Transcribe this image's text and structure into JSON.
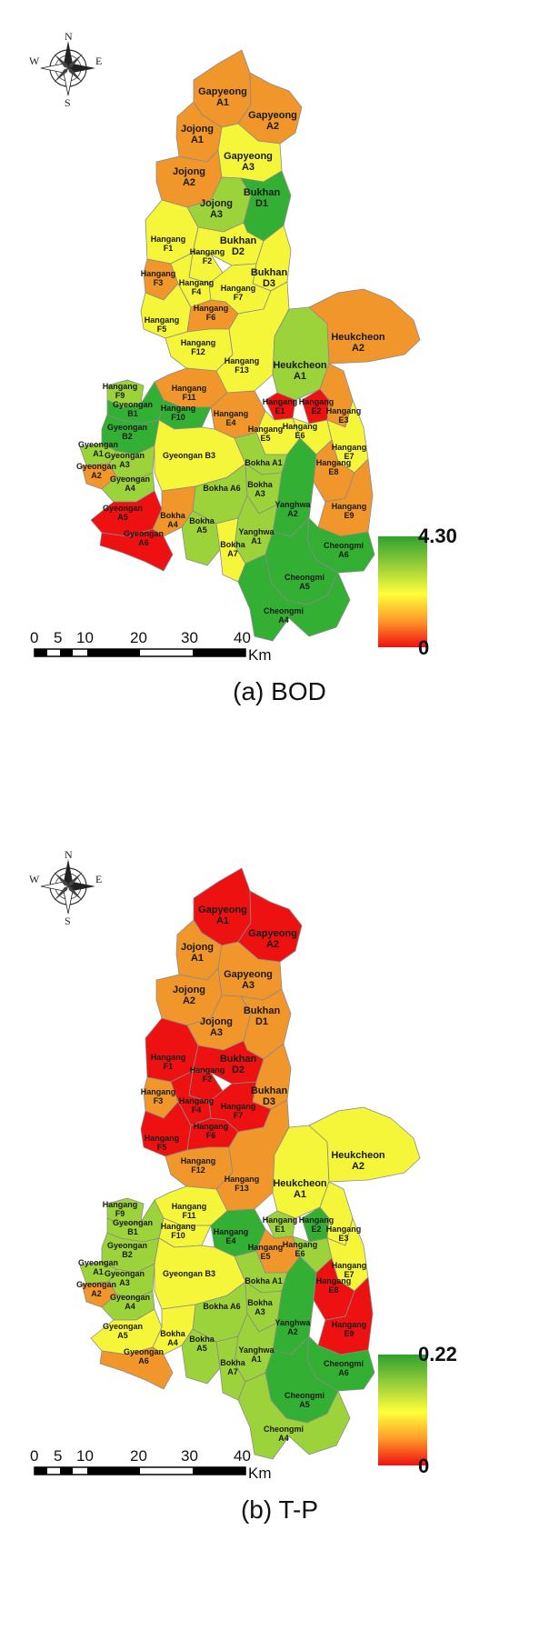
{
  "panels": [
    {
      "caption": "(a)  BOD",
      "legend": {
        "max_label": "4.30",
        "min_label": "0",
        "colors": [
          "#2fa12f",
          "#ffff3a",
          "#ee1111"
        ]
      },
      "scale_bar": {
        "ticks": [
          "0",
          "5",
          "10",
          "20",
          "30",
          "40"
        ],
        "unit": "Km"
      },
      "compass": {
        "n": "N",
        "s": "S",
        "e": "E",
        "w": "W"
      },
      "regions": {
        "gap_a1": {
          "label": [
            "Gapyeong",
            "A1"
          ],
          "color": "#f0962a"
        },
        "gap_a2": {
          "label": [
            "Gapyeong",
            "A2"
          ],
          "color": "#f0962a"
        },
        "joj_a1": {
          "label": [
            "Jojong",
            "A1"
          ],
          "color": "#f0962a"
        },
        "joj_a2": {
          "label": [
            "Jojong",
            "A2"
          ],
          "color": "#f0962a"
        },
        "gap_a3": {
          "label": [
            "Gapyeong",
            "A3"
          ],
          "color": "#f5f53a"
        },
        "joj_a3": {
          "label": [
            "Jojong",
            "A3"
          ],
          "color": "#9dd33a"
        },
        "buk_d1": {
          "label": [
            "Bukhan",
            "D1"
          ],
          "color": "#33b033"
        },
        "han_f1": {
          "label": [
            "Hangang",
            "F1"
          ],
          "color": "#f5f53a"
        },
        "buk_d2": {
          "label": [
            "Bukhan",
            "D2"
          ],
          "color": "#f5f53a"
        },
        "han_f2": {
          "label": [
            "Hangang",
            "F2"
          ],
          "color": "#f5f53a"
        },
        "han_f3": {
          "label": [
            "Hangang",
            "F3"
          ],
          "color": "#f0962a"
        },
        "han_f4": {
          "label": [
            "Hangang",
            "F4"
          ],
          "color": "#f5f53a"
        },
        "buk_d3": {
          "label": [
            "Bukhan",
            "D3"
          ],
          "color": "#f5f53a"
        },
        "han_f7": {
          "label": [
            "Hangang",
            "F7"
          ],
          "color": "#f5f53a"
        },
        "han_f5": {
          "label": [
            "Hangang",
            "F5"
          ],
          "color": "#f5f53a"
        },
        "han_f6": {
          "label": [
            "Hangang",
            "F6"
          ],
          "color": "#f0962a"
        },
        "han_f12": {
          "label": [
            "Hangang",
            "F12"
          ],
          "color": "#f5f53a"
        },
        "han_f13": {
          "label": [
            "Hangang",
            "F13"
          ],
          "color": "#f5f53a"
        },
        "heu_a1": {
          "label": [
            "Heukcheon",
            "A1"
          ],
          "color": "#9dd33a"
        },
        "heu_a2": {
          "label": [
            "Heukcheon",
            "A2"
          ],
          "color": "#f0962a"
        },
        "han_f9": {
          "label": [
            "Hangang",
            "F9"
          ],
          "color": "#9dd33a"
        },
        "han_f11": {
          "label": [
            "Hangang",
            "F11"
          ],
          "color": "#f0962a"
        },
        "han_f10": {
          "label": [
            "Hangang",
            "F10"
          ],
          "color": "#33b033"
        },
        "gyeo_b1": {
          "label": [
            "Gyeongan",
            "B1"
          ],
          "color": "#33b033"
        },
        "gyeo_b2": {
          "label": [
            "Gyeongan",
            "B2"
          ],
          "color": "#33b033"
        },
        "han_e4": {
          "label": [
            "Hangang",
            "E4"
          ],
          "color": "#f0962a"
        },
        "han_e1": {
          "label": [
            "Hangang",
            "E1"
          ],
          "color": "#ee1111"
        },
        "han_e2": {
          "label": [
            "Hangang",
            "E2"
          ],
          "color": "#ee1111"
        },
        "han_e3": {
          "label": [
            "Hangang",
            "E3"
          ],
          "color": "#f0962a"
        },
        "han_e5": {
          "label": [
            "Hangang",
            "E5"
          ],
          "color": "#f5f53a"
        },
        "han_e6": {
          "label": [
            "Hangang",
            "E6"
          ],
          "color": "#f5f53a"
        },
        "han_e7": {
          "label": [
            "Hangang",
            "E7"
          ],
          "color": "#f5f53a"
        },
        "gyeo_a1": {
          "label": [
            "Gyeongan",
            "A1"
          ],
          "color": "#9dd33a"
        },
        "gyeo_a3": {
          "label": [
            "Gyeongan",
            "A3"
          ],
          "color": "#9dd33a"
        },
        "gyeo_a2": {
          "label": [
            "Gyeongan",
            "A2"
          ],
          "color": "#f0962a"
        },
        "gyeo_a4": {
          "label": [
            "Gyeongan",
            "A4"
          ],
          "color": "#9dd33a"
        },
        "gyeo_b3": {
          "label": [
            "Gyeongan B3"
          ],
          "color": "#f5f53a"
        },
        "bok_a1": {
          "label": [
            "Bokha A1"
          ],
          "color": "#9dd33a"
        },
        "bok_a6": {
          "label": [
            "Bokha A6"
          ],
          "color": "#9dd33a"
        },
        "bok_a3": {
          "label": [
            "Bokha",
            "A3"
          ],
          "color": "#9dd33a"
        },
        "han_e8": {
          "label": [
            "Hangang",
            "E8"
          ],
          "color": "#f0962a"
        },
        "yan_a2": {
          "label": [
            "Yanghwa",
            "A2"
          ],
          "color": "#33b033"
        },
        "han_e9": {
          "label": [
            "Hangang",
            "E9"
          ],
          "color": "#f0962a"
        },
        "gyeo_a5": {
          "label": [
            "Gyeongan",
            "A5"
          ],
          "color": "#ee1111"
        },
        "bok_a4": {
          "label": [
            "Bokha",
            "A4"
          ],
          "color": "#f0962a"
        },
        "bok_a5": {
          "label": [
            "Bokha",
            "A5"
          ],
          "color": "#9dd33a"
        },
        "gyeo_a6": {
          "label": [
            "Gyeongan",
            "A6"
          ],
          "color": "#ee1111"
        },
        "yan_a1": {
          "label": [
            "Yanghwa",
            "A1"
          ],
          "color": "#9dd33a"
        },
        "bok_a7": {
          "label": [
            "Bokha",
            "A7"
          ],
          "color": "#f5f53a"
        },
        "che_a6": {
          "label": [
            "Cheongmi",
            "A6"
          ],
          "color": "#33b033"
        },
        "che_a5": {
          "label": [
            "Cheongmi",
            "A5"
          ],
          "color": "#33b033"
        },
        "che_a4": {
          "label": [
            "Cheongmi",
            "A4"
          ],
          "color": "#33b033"
        }
      }
    },
    {
      "caption": "(b)  T-P",
      "legend": {
        "max_label": "0.22",
        "min_label": "0",
        "colors": [
          "#2fa12f",
          "#ffff3a",
          "#ee1111"
        ]
      },
      "scale_bar": {
        "ticks": [
          "0",
          "5",
          "10",
          "20",
          "30",
          "40"
        ],
        "unit": "Km"
      },
      "compass": {
        "n": "N",
        "s": "S",
        "e": "E",
        "w": "W"
      },
      "regions": {
        "gap_a1": {
          "label": [
            "Gapyeong",
            "A1"
          ],
          "color": "#ee1111"
        },
        "gap_a2": {
          "label": [
            "Gapyeong",
            "A2"
          ],
          "color": "#ee1111"
        },
        "joj_a1": {
          "label": [
            "Jojong",
            "A1"
          ],
          "color": "#f0962a"
        },
        "joj_a2": {
          "label": [
            "Jojong",
            "A2"
          ],
          "color": "#f0962a"
        },
        "gap_a3": {
          "label": [
            "Gapyeong",
            "A3"
          ],
          "color": "#f0962a"
        },
        "joj_a3": {
          "label": [
            "Jojong",
            "A3"
          ],
          "color": "#f0962a"
        },
        "buk_d1": {
          "label": [
            "Bukhan",
            "D1"
          ],
          "color": "#f0962a"
        },
        "han_f1": {
          "label": [
            "Hangang",
            "F1"
          ],
          "color": "#ee1111"
        },
        "buk_d2": {
          "label": [
            "Bukhan",
            "D2"
          ],
          "color": "#ee1111"
        },
        "han_f2": {
          "label": [
            "Hangang",
            "F2"
          ],
          "color": "#ee1111"
        },
        "han_f3": {
          "label": [
            "Hangang",
            "F3"
          ],
          "color": "#f0962a"
        },
        "han_f4": {
          "label": [
            "Hangang",
            "F4"
          ],
          "color": "#ee1111"
        },
        "buk_d3": {
          "label": [
            "Bukhan",
            "D3"
          ],
          "color": "#f0962a"
        },
        "han_f7": {
          "label": [
            "Hangang",
            "F7"
          ],
          "color": "#ee1111"
        },
        "han_f5": {
          "label": [
            "Hangang",
            "F5"
          ],
          "color": "#ee1111"
        },
        "han_f6": {
          "label": [
            "Hangang",
            "F6"
          ],
          "color": "#ee1111"
        },
        "han_f12": {
          "label": [
            "Hangang",
            "F12"
          ],
          "color": "#f0962a"
        },
        "han_f13": {
          "label": [
            "Hangang",
            "F13"
          ],
          "color": "#f0962a"
        },
        "heu_a1": {
          "label": [
            "Heukcheon",
            "A1"
          ],
          "color": "#f5f53a"
        },
        "heu_a2": {
          "label": [
            "Heukcheon",
            "A2"
          ],
          "color": "#f5f53a"
        },
        "han_f9": {
          "label": [
            "Hangang",
            "F9"
          ],
          "color": "#9dd33a"
        },
        "han_f11": {
          "label": [
            "Hangang",
            "F11"
          ],
          "color": "#f5f53a"
        },
        "han_f10": {
          "label": [
            "Hangang",
            "F10"
          ],
          "color": "#f5f53a"
        },
        "gyeo_b1": {
          "label": [
            "Gyeongan",
            "B1"
          ],
          "color": "#9dd33a"
        },
        "gyeo_b2": {
          "label": [
            "Gyeongan",
            "B2"
          ],
          "color": "#9dd33a"
        },
        "han_e4": {
          "label": [
            "Hangang",
            "E4"
          ],
          "color": "#33b033"
        },
        "han_e1": {
          "label": [
            "Hangang",
            "E1"
          ],
          "color": "#9dd33a"
        },
        "han_e2": {
          "label": [
            "Hangang",
            "E2"
          ],
          "color": "#33b033"
        },
        "han_e3": {
          "label": [
            "Hangang",
            "E3"
          ],
          "color": "#f5f53a"
        },
        "han_e5": {
          "label": [
            "Hangang",
            "E5"
          ],
          "color": "#f0962a"
        },
        "han_e6": {
          "label": [
            "Hangang",
            "E6"
          ],
          "color": "#9dd33a"
        },
        "han_e7": {
          "label": [
            "Hangang",
            "E7"
          ],
          "color": "#f5f53a"
        },
        "gyeo_a1": {
          "label": [
            "Gyeongan",
            "A1"
          ],
          "color": "#9dd33a"
        },
        "gyeo_a3": {
          "label": [
            "Gyeongan",
            "A3"
          ],
          "color": "#9dd33a"
        },
        "gyeo_a2": {
          "label": [
            "Gyeongan",
            "A2"
          ],
          "color": "#f0962a"
        },
        "gyeo_a4": {
          "label": [
            "Gyeongan",
            "A4"
          ],
          "color": "#9dd33a"
        },
        "gyeo_b3": {
          "label": [
            "Gyeongan B3"
          ],
          "color": "#f5f53a"
        },
        "bok_a1": {
          "label": [
            "Bokha A1"
          ],
          "color": "#9dd33a"
        },
        "bok_a6": {
          "label": [
            "Bokha A6"
          ],
          "color": "#9dd33a"
        },
        "bok_a3": {
          "label": [
            "Bokha",
            "A3"
          ],
          "color": "#9dd33a"
        },
        "han_e8": {
          "label": [
            "Hangang",
            "E8"
          ],
          "color": "#ee1111"
        },
        "yan_a2": {
          "label": [
            "Yanghwa",
            "A2"
          ],
          "color": "#33b033"
        },
        "han_e9": {
          "label": [
            "Hangang",
            "E9"
          ],
          "color": "#ee1111"
        },
        "gyeo_a5": {
          "label": [
            "Gyeongan",
            "A5"
          ],
          "color": "#f5f53a"
        },
        "bok_a4": {
          "label": [
            "Bokha",
            "A4"
          ],
          "color": "#f5f53a"
        },
        "bok_a5": {
          "label": [
            "Bokha",
            "A5"
          ],
          "color": "#9dd33a"
        },
        "gyeo_a6": {
          "label": [
            "Gyeongan",
            "A6"
          ],
          "color": "#f0962a"
        },
        "yan_a1": {
          "label": [
            "Yanghwa",
            "A1"
          ],
          "color": "#9dd33a"
        },
        "bok_a7": {
          "label": [
            "Bokha",
            "A7"
          ],
          "color": "#9dd33a"
        },
        "che_a6": {
          "label": [
            "Cheongmi",
            "A6"
          ],
          "color": "#33b033"
        },
        "che_a5": {
          "label": [
            "Cheongmi",
            "A5"
          ],
          "color": "#33b033"
        },
        "che_a4": {
          "label": [
            "Cheongmi",
            "A4"
          ],
          "color": "#9dd33a"
        }
      }
    }
  ]
}
